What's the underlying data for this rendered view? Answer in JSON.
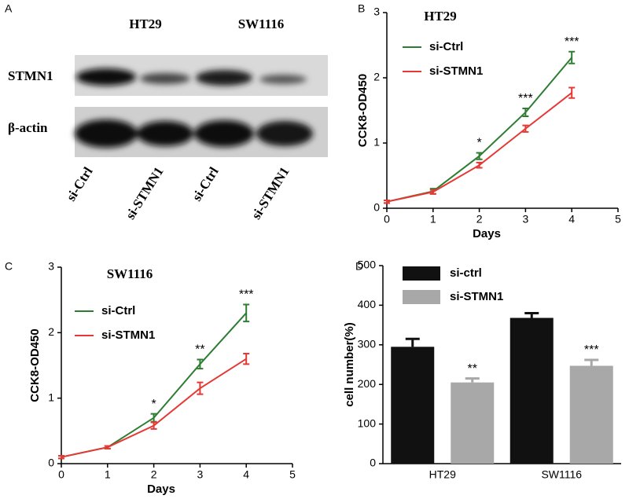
{
  "blot": {
    "panel": "A",
    "groups": [
      "HT29",
      "SW1116"
    ],
    "rows": [
      "STMN1",
      "β-actin"
    ],
    "lanes": [
      "si-Ctrl",
      "si-STMN1",
      "si-Ctrl",
      "si-STMN1"
    ]
  },
  "chart_data": [
    {
      "type": "line",
      "panel": "B",
      "title": "HT29",
      "xlabel": "Days",
      "ylabel": "CCK8-OD450",
      "x": [
        0,
        1,
        2,
        3,
        4
      ],
      "xlim": [
        0,
        5
      ],
      "ylim": [
        0,
        3
      ],
      "xticks": [
        0,
        1,
        2,
        3,
        4,
        5
      ],
      "yticks": [
        0,
        1,
        2,
        3
      ],
      "series": [
        {
          "name": "si-Ctrl",
          "color": "#2e7d32",
          "values": [
            0.1,
            0.26,
            0.8,
            1.47,
            2.31
          ],
          "errors": [
            0.02,
            0.04,
            0.05,
            0.06,
            0.09
          ]
        },
        {
          "name": "si-STMN1",
          "color": "#e53935",
          "values": [
            0.1,
            0.25,
            0.66,
            1.22,
            1.77
          ],
          "errors": [
            0.02,
            0.03,
            0.04,
            0.05,
            0.08
          ]
        }
      ],
      "annotations": [
        {
          "x": 2,
          "text": "*"
        },
        {
          "x": 3,
          "text": "***"
        },
        {
          "x": 4,
          "text": "***"
        }
      ]
    },
    {
      "type": "line",
      "panel": "C",
      "title": "SW1116",
      "xlabel": "Days",
      "ylabel": "CCK8-OD450",
      "x": [
        0,
        1,
        2,
        3,
        4
      ],
      "xlim": [
        0,
        5
      ],
      "ylim": [
        0,
        3
      ],
      "xticks": [
        0,
        1,
        2,
        3,
        4,
        5
      ],
      "yticks": [
        0,
        1,
        2,
        3
      ],
      "series": [
        {
          "name": "si-Ctrl",
          "color": "#2e7d32",
          "values": [
            0.1,
            0.25,
            0.7,
            1.52,
            2.3
          ],
          "errors": [
            0.02,
            0.02,
            0.06,
            0.07,
            0.13
          ]
        },
        {
          "name": "si-STMN1",
          "color": "#e53935",
          "values": [
            0.1,
            0.25,
            0.58,
            1.15,
            1.6
          ],
          "errors": [
            0.02,
            0.02,
            0.05,
            0.09,
            0.08
          ]
        }
      ],
      "annotations": [
        {
          "x": 2,
          "text": "*"
        },
        {
          "x": 3,
          "text": "**"
        },
        {
          "x": 4,
          "text": "***"
        }
      ]
    },
    {
      "type": "bar",
      "panel": "D",
      "ylabel": "cell number(%)",
      "categories": [
        "HT29",
        "SW1116"
      ],
      "ylim": [
        0,
        500
      ],
      "yticks": [
        0,
        100,
        200,
        300,
        400,
        500
      ],
      "series": [
        {
          "name": "si-ctrl",
          "color": "#111111",
          "values": [
            295,
            368
          ],
          "errors": [
            20,
            12
          ]
        },
        {
          "name": "si-STMN1",
          "color": "#a8a8a8",
          "values": [
            205,
            247
          ],
          "errors": [
            10,
            15
          ]
        }
      ],
      "annotations": [
        "**",
        "***"
      ]
    }
  ]
}
